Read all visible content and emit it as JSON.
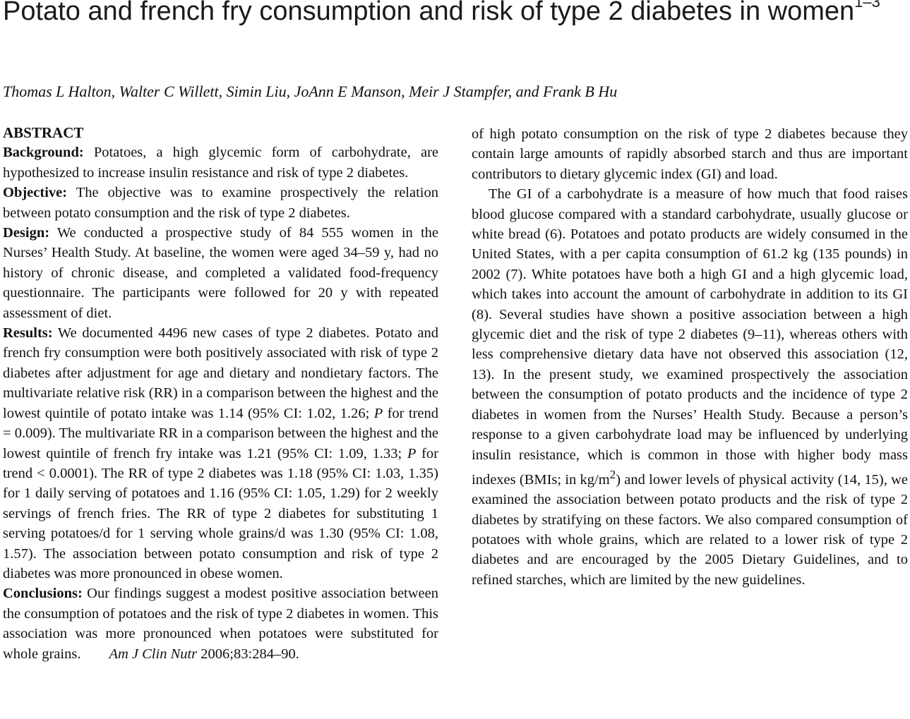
{
  "title": {
    "text": "Potato and french fry consumption and risk of type 2 diabetes in women",
    "sup": "1–3"
  },
  "authors": "Thomas L Halton, Walter C Willett, Simin Liu, JoAnn E Manson, Meir J Stampfer, and Frank B Hu",
  "abstract": {
    "heading": "ABSTRACT",
    "background_label": "Background:",
    "background_text": "Potatoes, a high glycemic form of carbohydrate, are hypothesized to increase insulin resistance and risk of type 2 diabetes.",
    "objective_label": "Objective:",
    "objective_text": "The objective was to examine prospectively the relation between potato consumption and the risk of type 2 diabetes.",
    "design_label": "Design:",
    "design_text": "We conducted a prospective study of 84 555 women in the Nurses’ Health Study. At baseline, the women were aged 34–59 y, had no history of chronic disease, and completed a validated food-frequency questionnaire. The participants were followed for 20 y with repeated assessment of diet.",
    "results_label": "Results:",
    "results_text_1": "We documented 4496 new cases of type 2 diabetes. Potato and french fry consumption were both positively associated with risk of type 2 diabetes after adjustment for age and dietary and nondietary factors. The multivariate relative risk (RR) in a comparison between the highest and the lowest quintile of potato intake was 1.14 (95% CI: 1.02, 1.26;",
    "results_p1": "P",
    "results_text_2": "for trend = 0.009). The multivariate RR in a comparison between the highest and the lowest quintile of french fry intake was 1.21 (95% CI: 1.09, 1.33;",
    "results_p2": "P",
    "results_text_3": "for trend < 0.0001). The RR of type 2 diabetes was 1.18 (95% CI: 1.03, 1.35) for 1 daily serving of potatoes and 1.16 (95% CI: 1.05, 1.29) for 2 weekly servings of french fries. The RR of type 2 diabetes for substituting 1 serving potatoes/d for 1 serving whole grains/d was 1.30 (95% CI: 1.08, 1.57). The association between potato consumption and risk of type 2 diabetes was more pronounced in obese women.",
    "conclusions_label": "Conclusions:",
    "conclusions_text": "Our findings suggest a modest positive association between the consumption of potatoes and the risk of type 2 diabetes in women. This association was more pronounced when potatoes were substituted for whole grains.",
    "citation_journal": "Am J Clin Nutr",
    "citation_rest": "2006;83:284–90."
  },
  "body": {
    "para1": "of high potato consumption on the risk of type 2 diabetes because they contain large amounts of rapidly absorbed starch and thus are important contributors to dietary glycemic index (GI) and load.",
    "para2_a": "The GI of a carbohydrate is a measure of how much that food raises blood glucose compared with a standard carbohydrate, usually glucose or white bread (6). Potatoes and potato products are widely consumed in the United States, with a per capita consumption of 61.2 kg (135 pounds) in 2002 (7). White potatoes have both a high GI and a high glycemic load, which takes into account the amount of carbohydrate in addition to its GI (8). Several studies have shown a positive association between a high glycemic diet and the risk of type 2 diabetes (9–11), whereas others with less comprehensive dietary data have not observed this association (12, 13). In the present study, we examined prospectively the association between the consumption of potato products and the incidence of type 2 diabetes in women from the Nurses’ Health Study. Because a person’s response to a given carbohydrate load may be influenced by underlying insulin resistance, which is common in those with higher body mass indexes (BMIs; in kg/m",
    "para2_sup": "2",
    "para2_b": ") and lower levels of physical activity (14, 15), we examined the association between potato products and the risk of type 2 diabetes by stratifying on these factors. We also compared consumption of potatoes with whole grains, which are related to a lower risk of type 2 diabetes and are encouraged by the 2005 Dietary Guidelines, and to refined starches, which are limited by the new guidelines."
  }
}
